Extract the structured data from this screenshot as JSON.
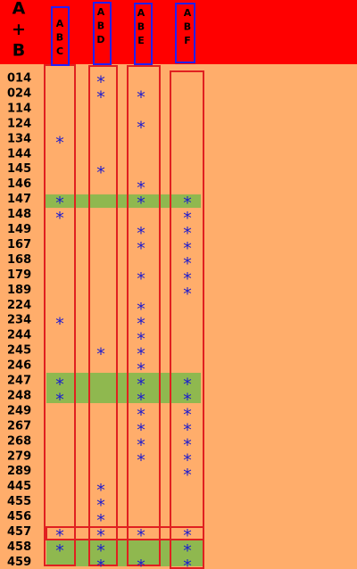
{
  "header": {
    "title": [
      "A",
      "+",
      "B"
    ],
    "columns": [
      [
        "A",
        "B",
        "C"
      ],
      [
        "A",
        "B",
        "D"
      ],
      [
        "A",
        "B",
        "E"
      ],
      [
        "A",
        "B",
        "F"
      ]
    ]
  },
  "table": {
    "rows": [
      {
        "label": "014",
        "cells": [
          null,
          "*",
          null,
          null
        ]
      },
      {
        "label": "024",
        "cells": [
          null,
          "*",
          "*",
          null
        ]
      },
      {
        "label": "114",
        "cells": [
          null,
          null,
          null,
          null
        ]
      },
      {
        "label": "124",
        "cells": [
          null,
          null,
          "*",
          null
        ]
      },
      {
        "label": "134",
        "cells": [
          "*",
          null,
          null,
          null
        ]
      },
      {
        "label": "144",
        "cells": [
          null,
          null,
          null,
          null
        ]
      },
      {
        "label": "145",
        "cells": [
          null,
          "*",
          null,
          null
        ]
      },
      {
        "label": "146",
        "cells": [
          null,
          null,
          "*",
          null
        ]
      },
      {
        "label": "147",
        "cells": [
          "*",
          null,
          "*",
          "*"
        ]
      },
      {
        "label": "148",
        "cells": [
          "*",
          null,
          null,
          "*"
        ]
      },
      {
        "label": "149",
        "cells": [
          null,
          null,
          "*",
          "*"
        ]
      },
      {
        "label": "167",
        "cells": [
          null,
          null,
          "*",
          "*"
        ]
      },
      {
        "label": "168",
        "cells": [
          null,
          null,
          null,
          "*"
        ]
      },
      {
        "label": "179",
        "cells": [
          null,
          null,
          "*",
          "*"
        ]
      },
      {
        "label": "189",
        "cells": [
          null,
          null,
          null,
          "*"
        ]
      },
      {
        "label": "224",
        "cells": [
          null,
          null,
          "*",
          null
        ]
      },
      {
        "label": "234",
        "cells": [
          "*",
          null,
          "*",
          null
        ]
      },
      {
        "label": "244",
        "cells": [
          null,
          null,
          "*",
          null
        ]
      },
      {
        "label": "245",
        "cells": [
          null,
          "*",
          "*",
          null
        ]
      },
      {
        "label": "246",
        "cells": [
          null,
          null,
          "*",
          null
        ]
      },
      {
        "label": "247",
        "cells": [
          "*",
          null,
          "*",
          "*"
        ]
      },
      {
        "label": "248",
        "cells": [
          "*",
          null,
          "*",
          "*"
        ]
      },
      {
        "label": "249",
        "cells": [
          null,
          null,
          "*",
          "*"
        ]
      },
      {
        "label": "267",
        "cells": [
          null,
          null,
          "*",
          "*"
        ]
      },
      {
        "label": "268",
        "cells": [
          null,
          null,
          "*",
          "*"
        ]
      },
      {
        "label": "279",
        "cells": [
          null,
          null,
          "*",
          "*"
        ]
      },
      {
        "label": "289",
        "cells": [
          null,
          null,
          null,
          "*"
        ]
      },
      {
        "label": "445",
        "cells": [
          null,
          "*",
          null,
          null
        ]
      },
      {
        "label": "455",
        "cells": [
          null,
          "*",
          null,
          null
        ]
      },
      {
        "label": "456",
        "cells": [
          null,
          "*",
          null,
          null
        ]
      },
      {
        "label": "457",
        "cells": [
          "*",
          "*",
          "*",
          "*"
        ]
      },
      {
        "label": "458",
        "cells": [
          "*",
          "*",
          null,
          "*"
        ]
      },
      {
        "label": "459",
        "cells": [
          null,
          "*",
          "*",
          "*"
        ]
      }
    ]
  }
}
